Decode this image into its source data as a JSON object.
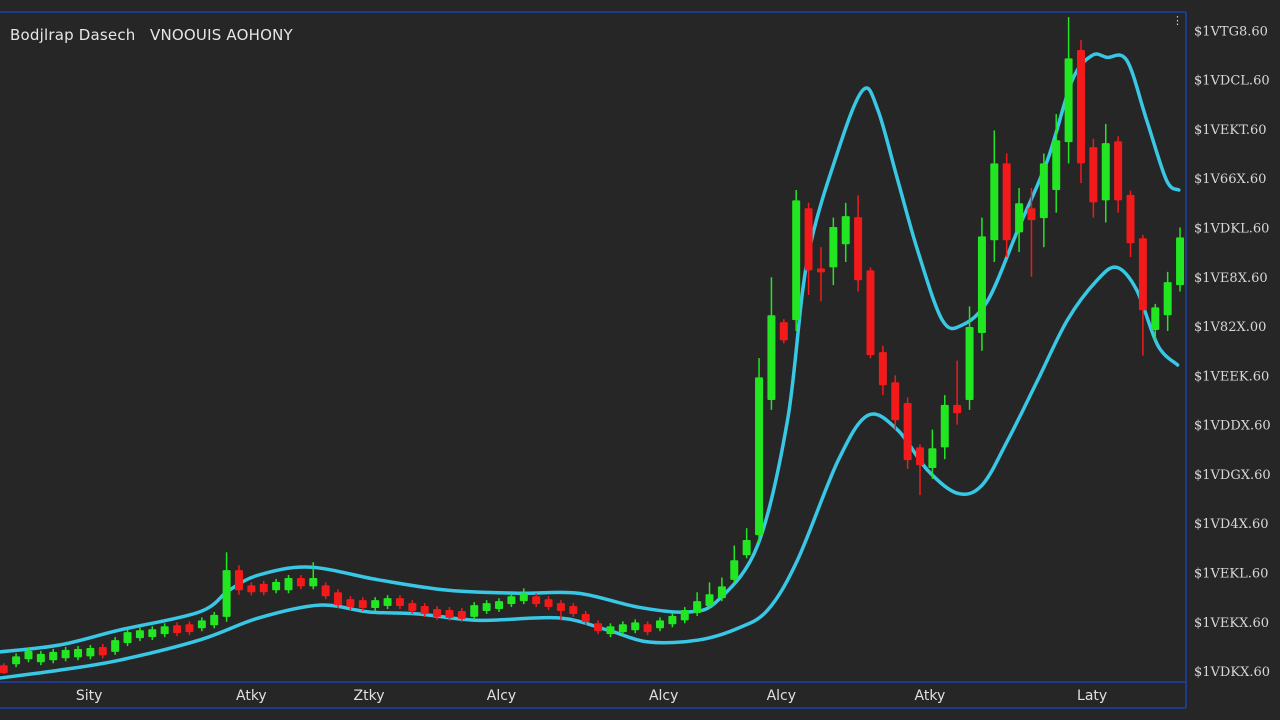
{
  "header": {
    "title": "Bodjlrap Dasech",
    "subtitle": "VNOOUIS AOHONY"
  },
  "colors": {
    "background": "#262626",
    "up": "#22e622",
    "down": "#f21a1a",
    "band": "#38c8e6",
    "frame": "#1f3a8a"
  },
  "icons": {
    "menu": "vertical-dots-icon"
  },
  "chart_data": {
    "type": "candlestick",
    "title": "",
    "xlabel": "",
    "ylabel": "",
    "grid": false,
    "xlim": [
      -0.3,
      95.4
    ],
    "ylim": [
      -0.18,
      13.31
    ],
    "y_axis_position": "right",
    "y_ticks": [
      {
        "value": 13,
        "label": "$1VTG8.60"
      },
      {
        "value": 12,
        "label": "$1VDCL.60"
      },
      {
        "value": 11,
        "label": "$1VEKT.60"
      },
      {
        "value": 10,
        "label": "$1V66X.60"
      },
      {
        "value": 9,
        "label": "$1VDKL.60"
      },
      {
        "value": 8,
        "label": "$1VE8X.60"
      },
      {
        "value": 7,
        "label": "$1V82X.00"
      },
      {
        "value": 6,
        "label": "$1VEEK.60"
      },
      {
        "value": 5,
        "label": "$1VDDX.60"
      },
      {
        "value": 4,
        "label": "$1VDGX.60"
      },
      {
        "value": 3,
        "label": "$1VD4X.60"
      },
      {
        "value": 2,
        "label": "$1VEKL.60"
      },
      {
        "value": 1,
        "label": "$1VEKX.60"
      },
      {
        "value": 0,
        "label": "$1VDKX.60"
      }
    ],
    "x_ticks": [
      {
        "value": 6.9,
        "label": "Sity"
      },
      {
        "value": 20.0,
        "label": "Atky"
      },
      {
        "value": 29.5,
        "label": "Ztky"
      },
      {
        "value": 40.2,
        "label": "Alcy"
      },
      {
        "value": 53.3,
        "label": "Alcy"
      },
      {
        "value": 62.8,
        "label": "Alcy"
      },
      {
        "value": 74.8,
        "label": "Atky"
      },
      {
        "value": 87.9,
        "label": "Laty"
      }
    ],
    "candles_columns": [
      "t",
      "open",
      "high",
      "low",
      "close"
    ],
    "candles": [
      [
        0,
        0.12,
        0.16,
        -0.06,
        -0.04
      ],
      [
        1,
        0.14,
        0.36,
        0.08,
        0.3
      ],
      [
        2,
        0.24,
        0.47,
        0.18,
        0.41
      ],
      [
        3,
        0.18,
        0.41,
        0.12,
        0.35
      ],
      [
        4,
        0.22,
        0.45,
        0.16,
        0.39
      ],
      [
        5,
        0.26,
        0.49,
        0.2,
        0.43
      ],
      [
        6,
        0.28,
        0.51,
        0.22,
        0.45
      ],
      [
        7,
        0.3,
        0.53,
        0.24,
        0.47
      ],
      [
        8,
        0.49,
        0.55,
        0.26,
        0.32
      ],
      [
        9,
        0.39,
        0.69,
        0.33,
        0.63
      ],
      [
        10,
        0.57,
        0.85,
        0.51,
        0.79
      ],
      [
        11,
        0.67,
        0.89,
        0.61,
        0.83
      ],
      [
        12,
        0.69,
        0.91,
        0.63,
        0.85
      ],
      [
        13,
        0.75,
        0.97,
        0.69,
        0.91
      ],
      [
        14,
        0.93,
        0.99,
        0.71,
        0.77
      ],
      [
        15,
        0.95,
        1.01,
        0.73,
        0.79
      ],
      [
        16,
        0.87,
        1.09,
        0.81,
        1.03
      ],
      [
        17,
        0.93,
        1.2,
        0.87,
        1.14
      ],
      [
        18,
        1.1,
        2.41,
        1.0,
        2.05
      ],
      [
        19,
        2.05,
        2.15,
        1.55,
        1.64
      ],
      [
        20,
        1.74,
        1.8,
        1.54,
        1.6
      ],
      [
        21,
        1.77,
        1.83,
        1.54,
        1.6
      ],
      [
        22,
        1.64,
        1.87,
        1.58,
        1.81
      ],
      [
        23,
        1.64,
        1.95,
        1.58,
        1.89
      ],
      [
        24,
        1.89,
        1.95,
        1.66,
        1.72
      ],
      [
        25,
        1.72,
        2.21,
        1.66,
        1.89
      ],
      [
        26,
        1.74,
        1.8,
        1.46,
        1.52
      ],
      [
        27,
        1.6,
        1.66,
        1.28,
        1.34
      ],
      [
        28,
        1.46,
        1.52,
        1.24,
        1.3
      ],
      [
        29,
        1.44,
        1.5,
        1.22,
        1.28
      ],
      [
        30,
        1.28,
        1.5,
        1.22,
        1.44
      ],
      [
        31,
        1.32,
        1.54,
        1.26,
        1.48
      ],
      [
        32,
        1.48,
        1.54,
        1.26,
        1.32
      ],
      [
        33,
        1.38,
        1.44,
        1.16,
        1.22
      ],
      [
        34,
        1.32,
        1.38,
        1.1,
        1.16
      ],
      [
        35,
        1.26,
        1.32,
        1.04,
        1.1
      ],
      [
        36,
        1.24,
        1.3,
        1.02,
        1.08
      ],
      [
        37,
        1.22,
        1.28,
        1.0,
        1.06
      ],
      [
        38,
        1.1,
        1.4,
        1.04,
        1.34
      ],
      [
        39,
        1.22,
        1.44,
        1.16,
        1.38
      ],
      [
        40,
        1.26,
        1.48,
        1.2,
        1.42
      ],
      [
        41,
        1.36,
        1.58,
        1.3,
        1.52
      ],
      [
        42,
        1.42,
        1.68,
        1.36,
        1.58
      ],
      [
        43,
        1.52,
        1.58,
        1.3,
        1.36
      ],
      [
        44,
        1.46,
        1.52,
        1.24,
        1.3
      ],
      [
        45,
        1.38,
        1.44,
        1.03,
        1.22
      ],
      [
        46,
        1.32,
        1.38,
        1.1,
        1.16
      ],
      [
        47,
        1.16,
        1.22,
        0.94,
        1.0
      ],
      [
        48,
        0.97,
        1.03,
        0.75,
        0.81
      ],
      [
        49,
        0.75,
        0.97,
        0.69,
        0.91
      ],
      [
        50,
        0.79,
        1.01,
        0.73,
        0.95
      ],
      [
        51,
        0.83,
        1.05,
        0.77,
        0.99
      ],
      [
        52,
        0.95,
        1.01,
        0.73,
        0.79
      ],
      [
        53,
        0.87,
        1.09,
        0.81,
        1.03
      ],
      [
        54,
        0.95,
        1.18,
        0.89,
        1.12
      ],
      [
        55,
        1.03,
        1.3,
        0.97,
        1.24
      ],
      [
        56,
        1.18,
        1.6,
        1.12,
        1.42
      ],
      [
        57,
        1.32,
        1.8,
        1.26,
        1.56
      ],
      [
        58,
        1.48,
        1.9,
        1.42,
        1.72
      ],
      [
        59,
        1.85,
        2.55,
        1.79,
        2.25
      ],
      [
        60,
        2.35,
        2.9,
        2.29,
        2.66
      ],
      [
        61,
        2.76,
        6.35,
        2.6,
        5.96
      ],
      [
        62,
        5.5,
        7.99,
        5.3,
        7.22
      ],
      [
        63,
        7.08,
        7.14,
        6.65,
        6.71
      ],
      [
        64,
        7.12,
        9.76,
        6.9,
        9.55
      ],
      [
        65,
        9.39,
        9.5,
        7.63,
        8.13
      ],
      [
        66,
        8.17,
        8.6,
        7.5,
        8.09
      ],
      [
        67,
        8.19,
        9.2,
        7.83,
        9.01
      ],
      [
        68,
        8.66,
        9.5,
        8.3,
        9.23
      ],
      [
        69,
        9.21,
        9.65,
        7.7,
        7.93
      ],
      [
        70,
        8.13,
        8.19,
        6.35,
        6.41
      ],
      [
        71,
        6.47,
        6.6,
        5.6,
        5.8
      ],
      [
        72,
        5.86,
        6.0,
        4.9,
        5.09
      ],
      [
        73,
        5.44,
        5.55,
        4.1,
        4.28
      ],
      [
        74,
        4.54,
        4.6,
        3.57,
        4.18
      ],
      [
        75,
        4.12,
        4.9,
        3.9,
        4.52
      ],
      [
        76,
        4.54,
        5.6,
        4.3,
        5.4
      ],
      [
        77,
        5.4,
        6.3,
        5.0,
        5.23
      ],
      [
        78,
        5.5,
        7.4,
        5.3,
        6.98
      ],
      [
        79,
        6.86,
        9.2,
        6.5,
        8.82
      ],
      [
        80,
        8.74,
        10.97,
        8.3,
        10.3
      ],
      [
        81,
        10.3,
        10.5,
        8.4,
        8.74
      ],
      [
        82,
        8.9,
        9.8,
        8.5,
        9.49
      ],
      [
        83,
        9.39,
        9.8,
        8.0,
        9.15
      ],
      [
        84,
        9.19,
        10.5,
        8.6,
        10.3
      ],
      [
        85,
        9.76,
        11.3,
        9.3,
        10.77
      ],
      [
        86,
        10.73,
        13.27,
        10.3,
        12.43
      ],
      [
        87,
        12.6,
        12.8,
        9.9,
        10.3
      ],
      [
        88,
        10.63,
        10.8,
        9.2,
        9.51
      ],
      [
        89,
        9.55,
        11.1,
        9.1,
        10.71
      ],
      [
        90,
        10.75,
        10.85,
        9.3,
        9.55
      ],
      [
        91,
        9.66,
        9.75,
        8.4,
        8.68
      ],
      [
        92,
        8.78,
        8.85,
        6.4,
        7.32
      ],
      [
        93,
        6.92,
        7.45,
        6.7,
        7.38
      ],
      [
        94,
        7.22,
        8.1,
        6.9,
        7.89
      ],
      [
        95,
        7.83,
        9.0,
        7.7,
        8.8
      ]
    ],
    "bands": {
      "upper": [
        [
          -0.3,
          0.39
        ],
        [
          4.5,
          0.53
        ],
        [
          9.3,
          0.83
        ],
        [
          15.8,
          1.2
        ],
        [
          18.2,
          1.64
        ],
        [
          20.6,
          1.95
        ],
        [
          24.7,
          2.11
        ],
        [
          30.3,
          1.85
        ],
        [
          35.9,
          1.64
        ],
        [
          41.6,
          1.58
        ],
        [
          46.4,
          1.58
        ],
        [
          51.2,
          1.3
        ],
        [
          55.3,
          1.2
        ],
        [
          57.7,
          1.44
        ],
        [
          60.9,
          2.56
        ],
        [
          63.3,
          5.09
        ],
        [
          64.9,
          8.34
        ],
        [
          67.4,
          10.57
        ],
        [
          69.4,
          11.79
        ],
        [
          70.6,
          11.38
        ],
        [
          72.2,
          9.96
        ],
        [
          73.8,
          8.54
        ],
        [
          75.8,
          7.12
        ],
        [
          77.4,
          7.02
        ],
        [
          79.5,
          7.53
        ],
        [
          81.9,
          8.95
        ],
        [
          84.3,
          10.37
        ],
        [
          86.3,
          11.99
        ],
        [
          87.9,
          12.49
        ],
        [
          89.1,
          12.45
        ],
        [
          90.7,
          12.39
        ],
        [
          92.3,
          11.18
        ],
        [
          93.9,
          9.96
        ],
        [
          94.9,
          9.76
        ]
      ],
      "lower": [
        [
          -0.3,
          -0.14
        ],
        [
          4.5,
          0.02
        ],
        [
          9.3,
          0.22
        ],
        [
          15.8,
          0.63
        ],
        [
          20.6,
          1.08
        ],
        [
          25.5,
          1.34
        ],
        [
          29.5,
          1.2
        ],
        [
          33.5,
          1.16
        ],
        [
          38.4,
          1.03
        ],
        [
          44.8,
          1.08
        ],
        [
          48.8,
          0.83
        ],
        [
          52.1,
          0.59
        ],
        [
          56.1,
          0.63
        ],
        [
          59.3,
          0.87
        ],
        [
          61.7,
          1.24
        ],
        [
          64.1,
          2.25
        ],
        [
          67.4,
          4.28
        ],
        [
          69.8,
          5.19
        ],
        [
          72.2,
          4.89
        ],
        [
          74.6,
          4.08
        ],
        [
          77.0,
          3.61
        ],
        [
          79.0,
          3.77
        ],
        [
          81.1,
          4.69
        ],
        [
          83.5,
          5.9
        ],
        [
          85.9,
          7.12
        ],
        [
          88.3,
          7.93
        ],
        [
          89.9,
          8.19
        ],
        [
          91.5,
          7.73
        ],
        [
          93.2,
          6.61
        ],
        [
          94.8,
          6.21
        ]
      ]
    }
  }
}
